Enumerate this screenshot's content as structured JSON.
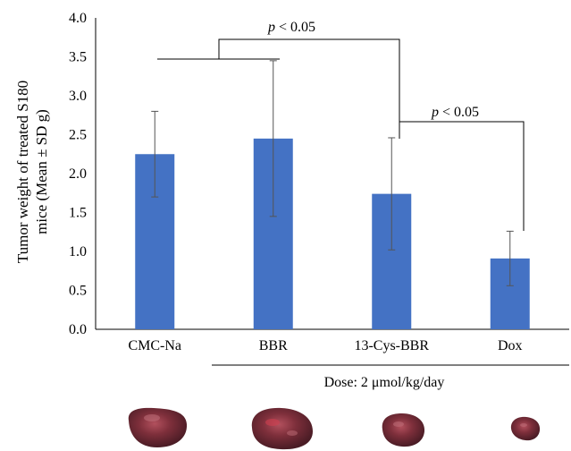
{
  "chart_data": {
    "type": "bar",
    "title": "",
    "ylabel_lines": [
      "Tumor weight of treated S180",
      "mice (Mean ± SD g)"
    ],
    "categories": [
      "CMC-Na",
      "BBR",
      "13-Cys-BBR",
      "Dox"
    ],
    "values": [
      2.25,
      2.45,
      1.74,
      0.91
    ],
    "errors": [
      0.55,
      1.0,
      0.72,
      0.35
    ],
    "ylim": [
      0,
      4.0
    ],
    "yticks": [
      "0.0",
      "0.5",
      "1.0",
      "1.5",
      "2.0",
      "2.5",
      "3.0",
      "3.5",
      "4.0"
    ],
    "grid": false,
    "bar_color": "#4472C4",
    "annotations": {
      "significance_1": {
        "prefix": "p",
        "text": " < 0.05"
      },
      "significance_2": {
        "prefix": "p",
        "text": " < 0.05"
      },
      "dose_note": "Dose: 2 μmol/kg/day"
    }
  },
  "tumor_photos": [
    "tumor-cmc-na",
    "tumor-bbr",
    "tumor-13-cys-bbr",
    "tumor-dox"
  ]
}
